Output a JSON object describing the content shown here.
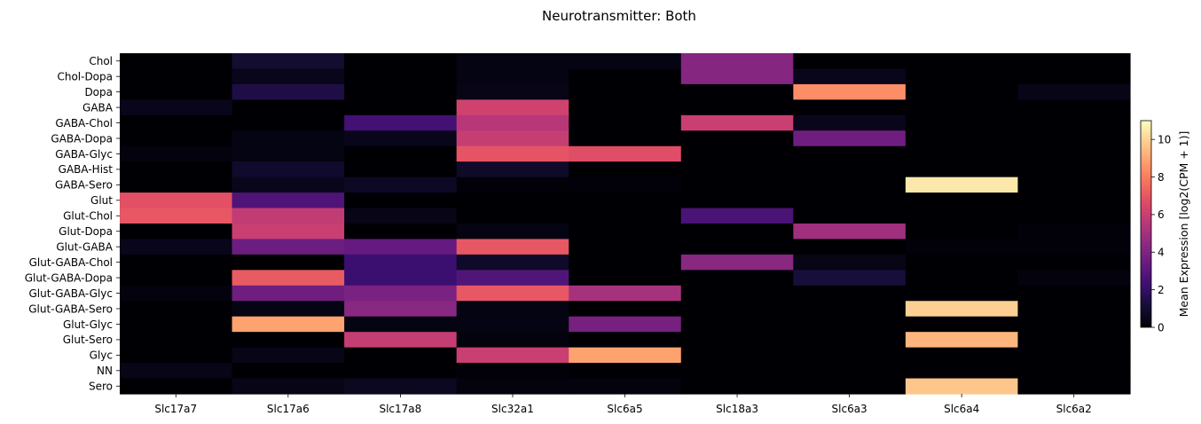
{
  "chart_data": {
    "type": "heatmap",
    "title": "Neurotransmitter: Both",
    "colormap": "magma",
    "x_categories": [
      "Slc17a7",
      "Slc17a6",
      "Slc17a8",
      "Slc32a1",
      "Slc6a5",
      "Slc18a3",
      "Slc6a3",
      "Slc6a4",
      "Slc6a2"
    ],
    "y_categories": [
      "Chol",
      "Chol-Dopa",
      "Dopa",
      "GABA",
      "GABA-Chol",
      "GABA-Dopa",
      "GABA-Glyc",
      "GABA-Hist",
      "GABA-Sero",
      "Glut",
      "Glut-Chol",
      "Glut-Dopa",
      "Glut-GABA",
      "Glut-GABA-Chol",
      "Glut-GABA-Dopa",
      "Glut-GABA-Glyc",
      "Glut-GABA-Sero",
      "Glut-Glyc",
      "Glut-Sero",
      "Glyc",
      "NN",
      "Sero"
    ],
    "values": [
      [
        0.0,
        1.0,
        0.0,
        0.3,
        0.3,
        4.2,
        0.0,
        0.0,
        0.0
      ],
      [
        0.0,
        0.5,
        0.0,
        0.3,
        0.0,
        4.2,
        0.5,
        0.0,
        0.0
      ],
      [
        0.0,
        1.4,
        0.0,
        0.4,
        0.0,
        0.0,
        8.4,
        0.0,
        0.4
      ],
      [
        0.5,
        0.0,
        0.0,
        6.2,
        0.0,
        0.0,
        0.0,
        0.0,
        0.0
      ],
      [
        0.0,
        0.0,
        2.4,
        5.5,
        0.0,
        6.0,
        0.5,
        0.0,
        0.0
      ],
      [
        0.0,
        0.3,
        0.5,
        5.9,
        0.0,
        0.0,
        3.6,
        0.0,
        0.0
      ],
      [
        0.2,
        0.3,
        0.0,
        6.9,
        6.7,
        0.0,
        0.0,
        0.0,
        0.0
      ],
      [
        0.0,
        0.9,
        0.0,
        0.8,
        0.0,
        0.0,
        0.0,
        0.0,
        0.0
      ],
      [
        0.0,
        0.5,
        0.7,
        0.1,
        0.1,
        0.0,
        0.0,
        10.5,
        0.0
      ],
      [
        6.8,
        2.7,
        0.0,
        0.0,
        0.0,
        0.0,
        0.0,
        0.0,
        0.0
      ],
      [
        7.0,
        5.8,
        0.4,
        0.0,
        0.0,
        2.6,
        0.0,
        0.0,
        0.0
      ],
      [
        0.0,
        6.0,
        0.0,
        0.3,
        0.0,
        0.0,
        4.9,
        0.0,
        0.1
      ],
      [
        0.5,
        3.5,
        3.3,
        7.0,
        0.0,
        0.0,
        0.0,
        0.1,
        0.1
      ],
      [
        0.0,
        0.0,
        2.2,
        0.8,
        0.0,
        4.3,
        0.4,
        0.0,
        0.0
      ],
      [
        0.0,
        7.1,
        2.2,
        2.8,
        0.0,
        0.0,
        1.2,
        0.0,
        0.2
      ],
      [
        0.2,
        3.6,
        3.9,
        7.0,
        5.1,
        0.0,
        0.0,
        0.0,
        0.0
      ],
      [
        0.0,
        0.3,
        4.3,
        0.3,
        0.0,
        0.0,
        0.0,
        9.9,
        0.0
      ],
      [
        0.0,
        8.9,
        0.3,
        0.3,
        3.8,
        0.0,
        0.0,
        0.0,
        0.0
      ],
      [
        0.0,
        0.0,
        5.9,
        0.2,
        0.0,
        0.0,
        0.0,
        9.3,
        0.0
      ],
      [
        0.0,
        0.4,
        0.0,
        6.0,
        8.9,
        0.0,
        0.0,
        0.0,
        0.0
      ],
      [
        0.4,
        0.0,
        0.0,
        0.1,
        0.0,
        0.0,
        0.0,
        0.0,
        0.0
      ],
      [
        0.0,
        0.4,
        0.6,
        0.2,
        0.2,
        0.0,
        0.0,
        9.7,
        0.0
      ]
    ],
    "colorbar": {
      "label": "Mean Expression [log2(CPM + 1)]",
      "range": [
        0,
        11
      ],
      "ticks": [
        "0",
        "2",
        "4",
        "6",
        "8",
        "10"
      ]
    }
  }
}
